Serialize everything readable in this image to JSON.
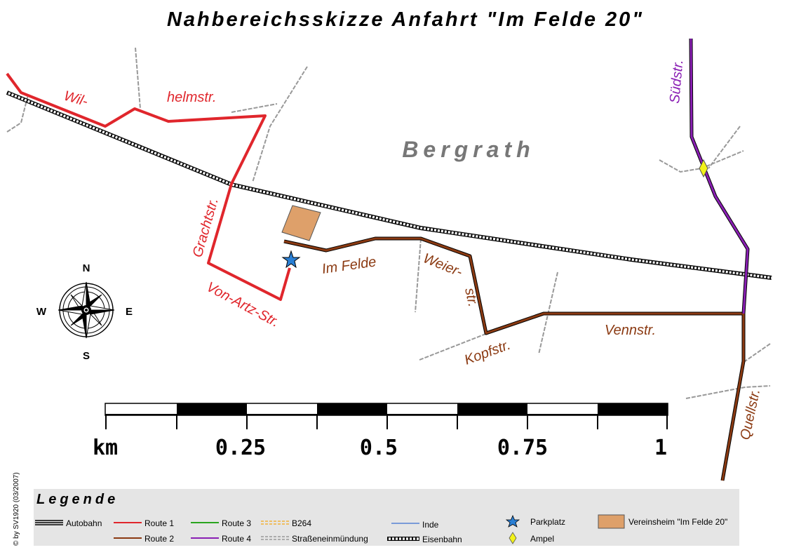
{
  "map": {
    "title": "Nahbereichsskizze Anfahrt \"Im Felde 20\"",
    "place_name": "Bergrath",
    "streets": {
      "wilhelmstr_part1": "Wil-",
      "wilhelmstr_part2": "helmstr.",
      "grachtstr": "Grachtstr.",
      "von_artz_str": "Von-Artz-Str.",
      "im_felde": "Im Felde",
      "weierstr_part1": "Weier-",
      "weierstr_part2": "str.",
      "kopfstr": "Kopfstr.",
      "vennstr": "Vennstr.",
      "suedstr": "Südstr.",
      "quellstr": "Quellstr."
    },
    "colors": {
      "route1": "#e0262c",
      "route2": "#8b3a12",
      "route3": "#2aa51f",
      "route4": "#8a1fb4",
      "b264": "#f2b13a",
      "inde": "#3a6fd0",
      "vereinsheim": "#dea06a",
      "parkplatz": "#2a7fd4",
      "ampel": "#f2f21a"
    }
  },
  "compass": {
    "north": "N",
    "south": "S",
    "west": "W",
    "east": "E",
    "icon": "compass-rose-icon"
  },
  "scale_bar": {
    "unit_label": "km",
    "tick_labels": [
      "0.25",
      "0.5",
      "0.75",
      "1"
    ]
  },
  "copyright": "© by SV1920 (03/2007)",
  "legend": {
    "title": "Legende",
    "items": {
      "autobahn": "Autobahn",
      "route1": "Route 1",
      "route2": "Route 2",
      "route3": "Route 3",
      "route4": "Route 4",
      "b264": "B264",
      "strasseneinmuendung": "Straßeneinmündung",
      "inde": "Inde",
      "eisenbahn": "Eisenbahn",
      "parkplatz": "Parkplatz",
      "ampel": "Ampel",
      "vereinsheim": "Vereinsheim \"Im Felde 20\""
    }
  }
}
